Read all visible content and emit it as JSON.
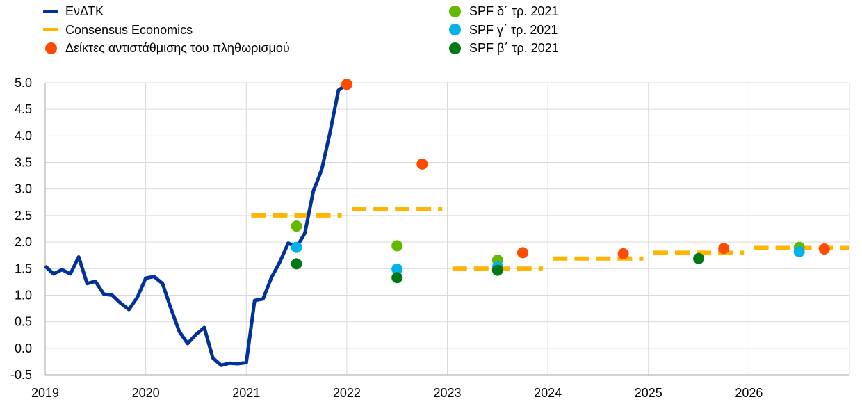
{
  "colors": {
    "hicp": "#003299",
    "consensus": "#FFB400",
    "inflation_fixings": "#FF4B00",
    "spf_q4": "#65B800",
    "spf_q3": "#00B1EA",
    "spf_q2": "#007816",
    "grid": "#d9d9d9"
  },
  "legend": {
    "left": [
      {
        "label": "ΕνΔΤΚ",
        "kind": "line",
        "color_key": "hicp"
      },
      {
        "label": "Consensus Economics",
        "kind": "line",
        "color_key": "consensus"
      },
      {
        "label": "Δείκτες αντιστάθμισης του πληθωρισμού",
        "kind": "dot",
        "color_key": "inflation_fixings"
      }
    ],
    "right": [
      {
        "label": "SPF δ΄ τρ. 2021",
        "kind": "dot",
        "color_key": "spf_q4"
      },
      {
        "label": "SPF γ΄ τρ. 2021",
        "kind": "dot",
        "color_key": "spf_q3"
      },
      {
        "label": "SPF β΄ τρ. 2021",
        "kind": "dot",
        "color_key": "spf_q2"
      }
    ]
  },
  "chart_data": {
    "type": "line",
    "x_range": [
      2019.0,
      2027.0
    ],
    "ylim": [
      -0.5,
      5.0
    ],
    "y_ticks": [
      "5.0",
      "4.5",
      "4.0",
      "3.5",
      "3.0",
      "2.5",
      "2.0",
      "1.5",
      "1.0",
      "0.5",
      "0.0",
      "-0.5"
    ],
    "y_tick_values": [
      5.0,
      4.5,
      4.0,
      3.5,
      3.0,
      2.5,
      2.0,
      1.5,
      1.0,
      0.5,
      0.0,
      -0.5
    ],
    "x_ticks": [
      "2019",
      "2020",
      "2021",
      "2022",
      "2023",
      "2024",
      "2025",
      "2026"
    ],
    "x_tick_values": [
      2019,
      2020,
      2021,
      2022,
      2023,
      2024,
      2025,
      2026
    ],
    "grid": true,
    "legend_position": "top",
    "hicp": {
      "name": "ΕνΔΤΚ",
      "points": [
        [
          2019.0,
          1.55
        ],
        [
          2019.083,
          1.4
        ],
        [
          2019.167,
          1.48
        ],
        [
          2019.25,
          1.4
        ],
        [
          2019.333,
          1.72
        ],
        [
          2019.417,
          1.22
        ],
        [
          2019.5,
          1.26
        ],
        [
          2019.583,
          1.02
        ],
        [
          2019.667,
          1.0
        ],
        [
          2019.75,
          0.85
        ],
        [
          2019.833,
          0.73
        ],
        [
          2019.917,
          0.96
        ],
        [
          2020.0,
          1.32
        ],
        [
          2020.083,
          1.35
        ],
        [
          2020.167,
          1.22
        ],
        [
          2020.25,
          0.75
        ],
        [
          2020.333,
          0.32
        ],
        [
          2020.417,
          0.09
        ],
        [
          2020.5,
          0.26
        ],
        [
          2020.583,
          0.39
        ],
        [
          2020.667,
          -0.18
        ],
        [
          2020.75,
          -0.32
        ],
        [
          2020.833,
          -0.28
        ],
        [
          2020.917,
          -0.29
        ],
        [
          2021.0,
          -0.27
        ],
        [
          2021.083,
          0.9
        ],
        [
          2021.167,
          0.93
        ],
        [
          2021.25,
          1.33
        ],
        [
          2021.333,
          1.62
        ],
        [
          2021.417,
          1.98
        ],
        [
          2021.5,
          1.9
        ],
        [
          2021.583,
          2.17
        ],
        [
          2021.667,
          2.96
        ],
        [
          2021.75,
          3.36
        ],
        [
          2021.833,
          4.06
        ],
        [
          2021.917,
          4.86
        ],
        [
          2022.0,
          4.97
        ]
      ]
    },
    "consensus": {
      "name": "Consensus Economics",
      "segments": [
        {
          "x": [
            2021.05,
            2021.95
          ],
          "y": 2.5
        },
        {
          "x": [
            2022.05,
            2022.95
          ],
          "y": 2.63
        },
        {
          "x": [
            2023.05,
            2023.95
          ],
          "y": 1.5
        },
        {
          "x": [
            2024.05,
            2024.95
          ],
          "y": 1.69
        },
        {
          "x": [
            2025.05,
            2025.95
          ],
          "y": 1.8
        },
        {
          "x": [
            2026.05,
            2027.0
          ],
          "y": 1.89
        }
      ]
    },
    "inflation_fixings": {
      "name": "Δείκτες αντιστάθμισης του πληθωρισμού",
      "points": [
        [
          2022.0,
          4.97
        ],
        [
          2022.75,
          3.47
        ],
        [
          2023.75,
          1.8
        ],
        [
          2024.75,
          1.78
        ],
        [
          2025.75,
          1.88
        ],
        [
          2026.75,
          1.87
        ]
      ]
    },
    "spf_q4": {
      "name": "SPF δ΄ τρ. 2021",
      "points": [
        [
          2021.5,
          2.3
        ],
        [
          2022.5,
          1.93
        ],
        [
          2023.5,
          1.66
        ],
        [
          2026.5,
          1.9
        ]
      ]
    },
    "spf_q3": {
      "name": "SPF γ΄ τρ. 2021",
      "points": [
        [
          2021.5,
          1.9
        ],
        [
          2022.5,
          1.49
        ],
        [
          2023.5,
          1.53
        ],
        [
          2026.5,
          1.82
        ]
      ]
    },
    "spf_q2": {
      "name": "SPF β΄ τρ. 2021",
      "points": [
        [
          2021.5,
          1.59
        ],
        [
          2022.5,
          1.33
        ],
        [
          2023.5,
          1.47
        ],
        [
          2025.5,
          1.69
        ]
      ]
    }
  }
}
